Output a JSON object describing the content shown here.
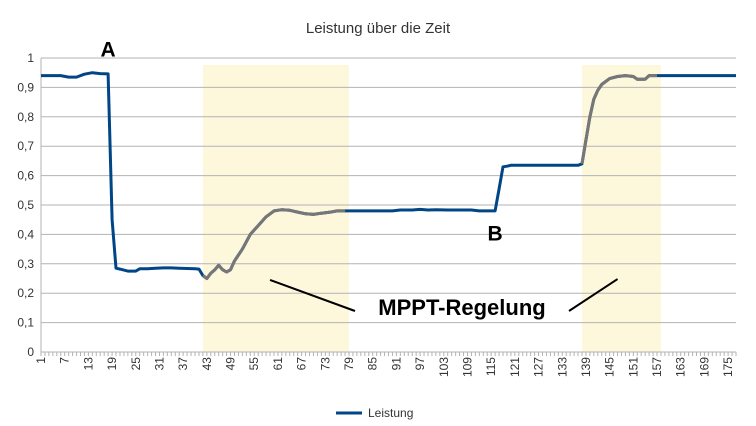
{
  "chart_data": {
    "type": "line",
    "title": "Leistung über die Zeit",
    "xlabel": "",
    "ylabel": "",
    "ylim": [
      0,
      1
    ],
    "xlim": [
      1,
      177
    ],
    "y_ticks": [
      "0",
      "0,1",
      "0,2",
      "0,3",
      "0,4",
      "0,5",
      "0,6",
      "0,7",
      "0,8",
      "0,9",
      "1"
    ],
    "x_ticks": [
      "1",
      "7",
      "13",
      "19",
      "25",
      "31",
      "37",
      "43",
      "49",
      "55",
      "61",
      "67",
      "73",
      "79",
      "85",
      "91",
      "97",
      "103",
      "109",
      "115",
      "121",
      "127",
      "133",
      "139",
      "145",
      "151",
      "157",
      "163",
      "169",
      "175"
    ],
    "grid": true,
    "legend_position": "bottom",
    "series": [
      {
        "name": "Leistung",
        "color": "#004586",
        "points": [
          [
            1,
            0.94
          ],
          [
            3,
            0.94
          ],
          [
            6,
            0.94
          ],
          [
            8,
            0.935
          ],
          [
            10,
            0.935
          ],
          [
            12,
            0.945
          ],
          [
            14,
            0.95
          ],
          [
            16,
            0.947
          ],
          [
            18,
            0.946
          ],
          [
            19,
            0.45
          ],
          [
            20,
            0.285
          ],
          [
            21,
            0.282
          ],
          [
            23,
            0.275
          ],
          [
            25,
            0.275
          ],
          [
            26,
            0.283
          ],
          [
            28,
            0.283
          ],
          [
            30,
            0.285
          ],
          [
            32,
            0.286
          ],
          [
            34,
            0.286
          ],
          [
            36,
            0.285
          ],
          [
            38,
            0.284
          ],
          [
            40,
            0.283
          ],
          [
            41,
            0.282
          ],
          [
            42,
            0.26
          ],
          [
            43,
            0.25
          ],
          [
            44,
            0.268
          ],
          [
            45,
            0.28
          ],
          [
            46,
            0.295
          ],
          [
            47,
            0.28
          ],
          [
            48,
            0.272
          ],
          [
            49,
            0.28
          ],
          [
            50,
            0.31
          ],
          [
            52,
            0.35
          ],
          [
            54,
            0.4
          ],
          [
            56,
            0.43
          ],
          [
            58,
            0.46
          ],
          [
            60,
            0.48
          ],
          [
            62,
            0.484
          ],
          [
            64,
            0.482
          ],
          [
            66,
            0.476
          ],
          [
            68,
            0.47
          ],
          [
            70,
            0.468
          ],
          [
            72,
            0.472
          ],
          [
            74,
            0.475
          ],
          [
            76,
            0.48
          ],
          [
            78,
            0.48
          ],
          [
            80,
            0.48
          ],
          [
            90,
            0.48
          ],
          [
            92,
            0.483
          ],
          [
            95,
            0.483
          ],
          [
            97,
            0.485
          ],
          [
            99,
            0.483
          ],
          [
            101,
            0.484
          ],
          [
            104,
            0.483
          ],
          [
            110,
            0.483
          ],
          [
            112,
            0.48
          ],
          [
            116,
            0.48
          ],
          [
            117,
            0.555
          ],
          [
            118,
            0.63
          ],
          [
            119,
            0.632
          ],
          [
            120,
            0.635
          ],
          [
            124,
            0.635
          ],
          [
            130,
            0.635
          ],
          [
            135,
            0.635
          ],
          [
            137,
            0.635
          ],
          [
            138,
            0.64
          ],
          [
            139,
            0.72
          ],
          [
            140,
            0.8
          ],
          [
            141,
            0.86
          ],
          [
            142,
            0.89
          ],
          [
            143,
            0.91
          ],
          [
            145,
            0.93
          ],
          [
            147,
            0.937
          ],
          [
            149,
            0.94
          ],
          [
            151,
            0.937
          ],
          [
            152,
            0.928
          ],
          [
            154,
            0.928
          ],
          [
            155,
            0.94
          ],
          [
            157,
            0.94
          ],
          [
            159,
            0.94
          ],
          [
            165,
            0.94
          ],
          [
            177,
            0.94
          ]
        ]
      }
    ],
    "highlight_regions": [
      {
        "x_start": 42,
        "x_end": 79,
        "color": "#fdf7dc"
      },
      {
        "x_start": 138,
        "x_end": 158,
        "color": "#fdf7dc"
      }
    ],
    "highlight_line_color": "#777777",
    "annotations": [
      {
        "text": "A",
        "x": 18,
        "y": 1.005
      },
      {
        "text": "B",
        "x": 116,
        "y": 0.38
      }
    ],
    "callout": {
      "text": "MPPT-Regelung",
      "pointers": [
        {
          "x": 59,
          "y": 0.245
        },
        {
          "x": 147,
          "y": 0.248
        }
      ]
    }
  }
}
